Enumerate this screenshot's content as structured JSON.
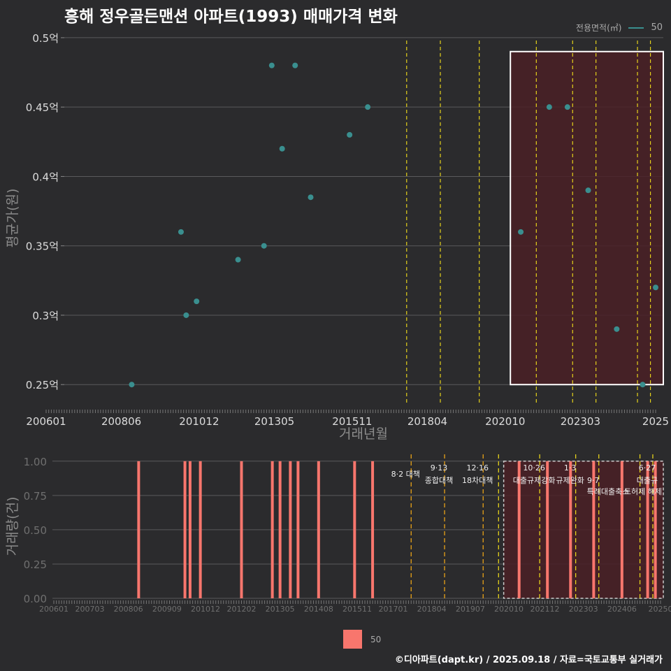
{
  "title": "흥해 정우골든맨션 아파트(1993) 매매가격 변화",
  "legend_top": {
    "title": "전용면적(㎡)",
    "label": "50"
  },
  "legend_bottom": {
    "label": "50"
  },
  "caption": "©디아파트(dapt.kr) / 2025.09.18 / 자료=국토교통부 실거래가",
  "colors": {
    "background": "#2b2b2d",
    "point": "#3a8f8f",
    "bar": "#f8766d",
    "policy_line": "#e5d21b",
    "highlight": "#4a2026"
  },
  "chart_data": [
    {
      "type": "scatter",
      "xlabel": "거래년월",
      "ylabel": "평균가(원)",
      "ylim": [
        0.235,
        0.505
      ],
      "yticks": [
        0.25,
        0.3,
        0.35,
        0.4,
        0.45,
        0.5
      ],
      "ytick_labels": [
        "0.25억",
        "0.3억",
        "0.35억",
        "0.4억",
        "0.45억",
        "0.5억"
      ],
      "xticks": [
        "2006-01",
        "2008-06",
        "2010-12",
        "2013-05",
        "2015-11",
        "2018-04",
        "2020-10",
        "2023-03",
        "2025-08"
      ],
      "xtick_labels": [
        "200601",
        "200806",
        "201012",
        "201305",
        "201511",
        "201804",
        "202010",
        "202303",
        "2025"
      ],
      "series": [
        {
          "points": [
            [
              "2008-10",
              0.25
            ],
            [
              "2010-05",
              0.36
            ],
            [
              "2010-07",
              0.3
            ],
            [
              "2010-11",
              0.31
            ],
            [
              "2012-03",
              0.34
            ],
            [
              "2013-01",
              0.35
            ],
            [
              "2013-04",
              0.48
            ],
            [
              "2013-08",
              0.42
            ],
            [
              "2014-01",
              0.48
            ],
            [
              "2014-07",
              0.385
            ],
            [
              "2015-10",
              0.43
            ],
            [
              "2016-05",
              0.45
            ],
            [
              "2021-04",
              0.36
            ],
            [
              "2022-03",
              0.45
            ],
            [
              "2022-10",
              0.45
            ],
            [
              "2023-06",
              0.39
            ],
            [
              "2024-05",
              0.29
            ],
            [
              "2025-03",
              0.25
            ],
            [
              "2025-08",
              0.32
            ]
          ]
        }
      ],
      "policy_dates": [
        "2017-08",
        "2018-09",
        "2019-12",
        "2021-10",
        "2022-12",
        "2023-09",
        "2025-01",
        "2025-06"
      ],
      "highlight": {
        "from": "2020-12",
        "to": "2025-08",
        "ymin": 0.25,
        "ymax": 0.49
      }
    },
    {
      "type": "bar",
      "xlabel": "",
      "ylabel": "거래량(건)",
      "ylim": [
        0,
        1.05
      ],
      "yticks": [
        0,
        0.25,
        0.5,
        0.75,
        1.0
      ],
      "ytick_labels": [
        "0.00",
        "0.25",
        "0.50",
        "0.75",
        "1.00"
      ],
      "xticks": [
        "2006-01",
        "2007-03",
        "2008-06",
        "2009-09",
        "2010-12",
        "2012-02",
        "2013-05",
        "2014-08",
        "2015-11",
        "2017-01",
        "2018-04",
        "2019-07",
        "2020-10",
        "2021-12",
        "2023-03",
        "2024-06",
        "2025-09"
      ],
      "xtick_labels": [
        "200601",
        "200703",
        "200806",
        "200909",
        "201012",
        "201202",
        "201305",
        "201408",
        "201511",
        "201701",
        "201804",
        "201907",
        "202010",
        "202112",
        "202303",
        "202406",
        "20250"
      ],
      "bars": [
        [
          "2008-10",
          1
        ],
        [
          "2010-04",
          1
        ],
        [
          "2010-06",
          1
        ],
        [
          "2010-10",
          1
        ],
        [
          "2012-02",
          1
        ],
        [
          "2013-02",
          1
        ],
        [
          "2013-05",
          1
        ],
        [
          "2013-09",
          1
        ],
        [
          "2013-12",
          1
        ],
        [
          "2014-08",
          1
        ],
        [
          "2015-10",
          1
        ],
        [
          "2016-05",
          1
        ],
        [
          "2021-02",
          1
        ],
        [
          "2022-01",
          1
        ],
        [
          "2022-10",
          1
        ],
        [
          "2023-07",
          1
        ],
        [
          "2024-06",
          1
        ],
        [
          "2025-04",
          1
        ],
        [
          "2025-07",
          1
        ]
      ],
      "policy_lines": [
        {
          "date": "2017-08",
          "label": "8·2 대책",
          "sub": ""
        },
        {
          "date": "2018-09",
          "label": "9·13",
          "sub": "종합대책"
        },
        {
          "date": "2019-12",
          "label": "12·16",
          "sub": "18차대책"
        },
        {
          "date": "2020-06",
          "label": "",
          "sub": ""
        },
        {
          "date": "2021-10",
          "label": "10·26",
          "sub": "대출규제강화"
        },
        {
          "date": "2022-12",
          "label": "1·3",
          "sub": "규제완화"
        },
        {
          "date": "2023-09",
          "label": "",
          "sub": "9·7"
        },
        {
          "date": "2025-01",
          "label": "",
          "sub": ""
        },
        {
          "date": "2025-06",
          "label": "6·27",
          "sub": "대출규"
        }
      ],
      "extra_labels": [
        "특례대출축소",
        "토허제 해제"
      ],
      "highlight": {
        "from": "2020-08",
        "to": "2025-09"
      }
    }
  ]
}
